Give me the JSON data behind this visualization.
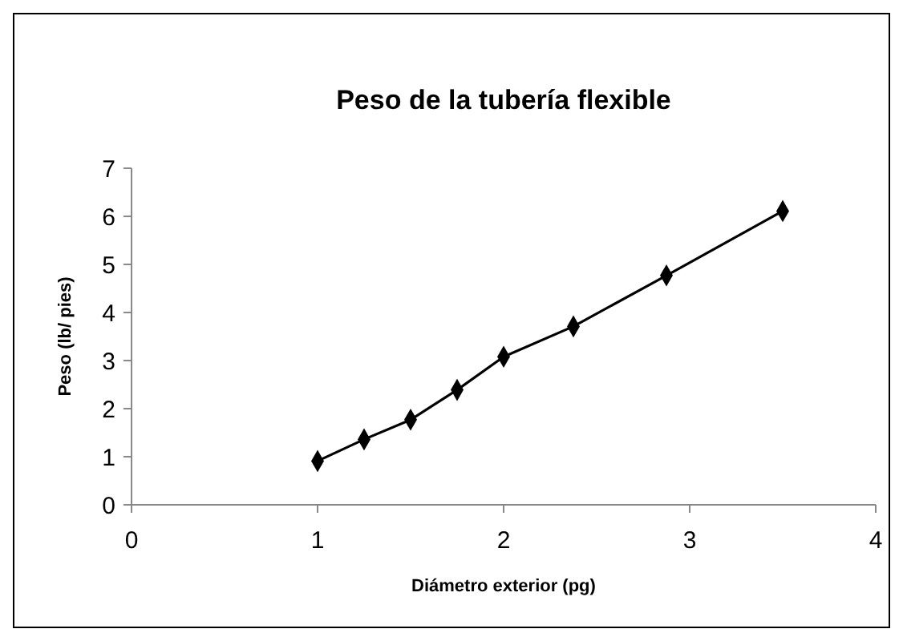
{
  "chart_data": {
    "type": "line",
    "title": "Peso de la tubería flexible",
    "xlabel": "Diámetro exterior (pg)",
    "ylabel": "Peso (lb/ pies)",
    "x": [
      1,
      1.25,
      1.5,
      1.75,
      2,
      2.375,
      2.875,
      3.5
    ],
    "series": [
      {
        "color": "#000000",
        "values": [
          0.91,
          1.36,
          1.77,
          2.39,
          3.08,
          3.71,
          4.77,
          6.11
        ]
      }
    ],
    "xlim": [
      0,
      4
    ],
    "xticks": [
      0,
      1,
      2,
      3,
      4
    ],
    "ylim": [
      0,
      7
    ],
    "yticks": [
      0,
      1,
      2,
      3,
      4,
      5,
      6,
      7
    ],
    "grid": false,
    "marker": "diamond",
    "line_style": "solid"
  }
}
